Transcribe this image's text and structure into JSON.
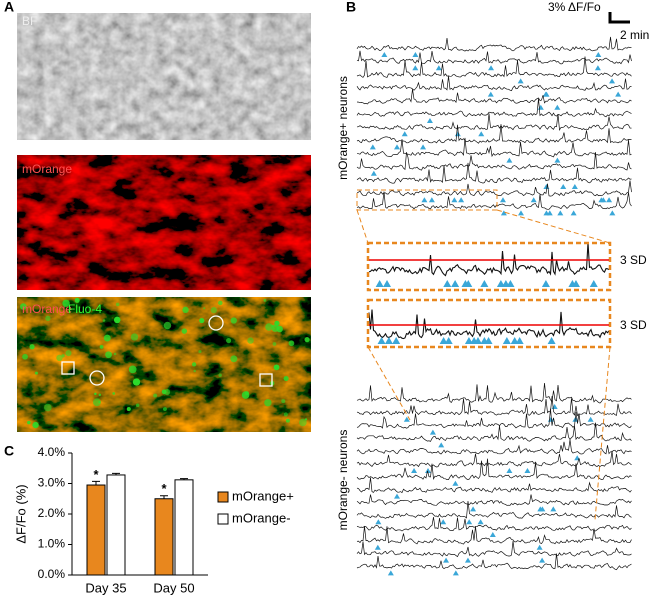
{
  "panel_labels": [
    "A",
    "B",
    "C"
  ],
  "images": {
    "bf": "BF",
    "morange": "mOrange",
    "merge_red": "mOrange",
    "merge_green": "Fluo-4"
  },
  "traces": {
    "scale_y": "3% ΔF/Fo",
    "scale_x": "2 min",
    "group_pos": "mOrange+ neurons",
    "group_neg": "mOrange- neurons",
    "threshold_labels": [
      "3 SD",
      "3 SD"
    ]
  },
  "chart_data": {
    "type": "bar",
    "y_label": "ΔF/Fo (%)",
    "categories": [
      "Day 35",
      "Day 50"
    ],
    "series": [
      {
        "name": "mOrange+",
        "color": "#e8871e",
        "values": [
          2.95,
          2.5
        ],
        "errors": [
          0.12,
          0.1
        ],
        "significance": [
          "*",
          "*"
        ]
      },
      {
        "name": "mOrange-",
        "color": "#ffffff",
        "values": [
          3.28,
          3.12
        ],
        "errors": [
          0.05,
          0.04
        ]
      }
    ],
    "ylim": [
      0,
      4
    ],
    "yticks": [
      {
        "value": 0,
        "label": "0.0%"
      },
      {
        "value": 1,
        "label": "1.0%"
      },
      {
        "value": 2,
        "label": "2.0%"
      },
      {
        "value": 3,
        "label": "3.0%"
      },
      {
        "value": 4,
        "label": "4.0%"
      }
    ]
  }
}
